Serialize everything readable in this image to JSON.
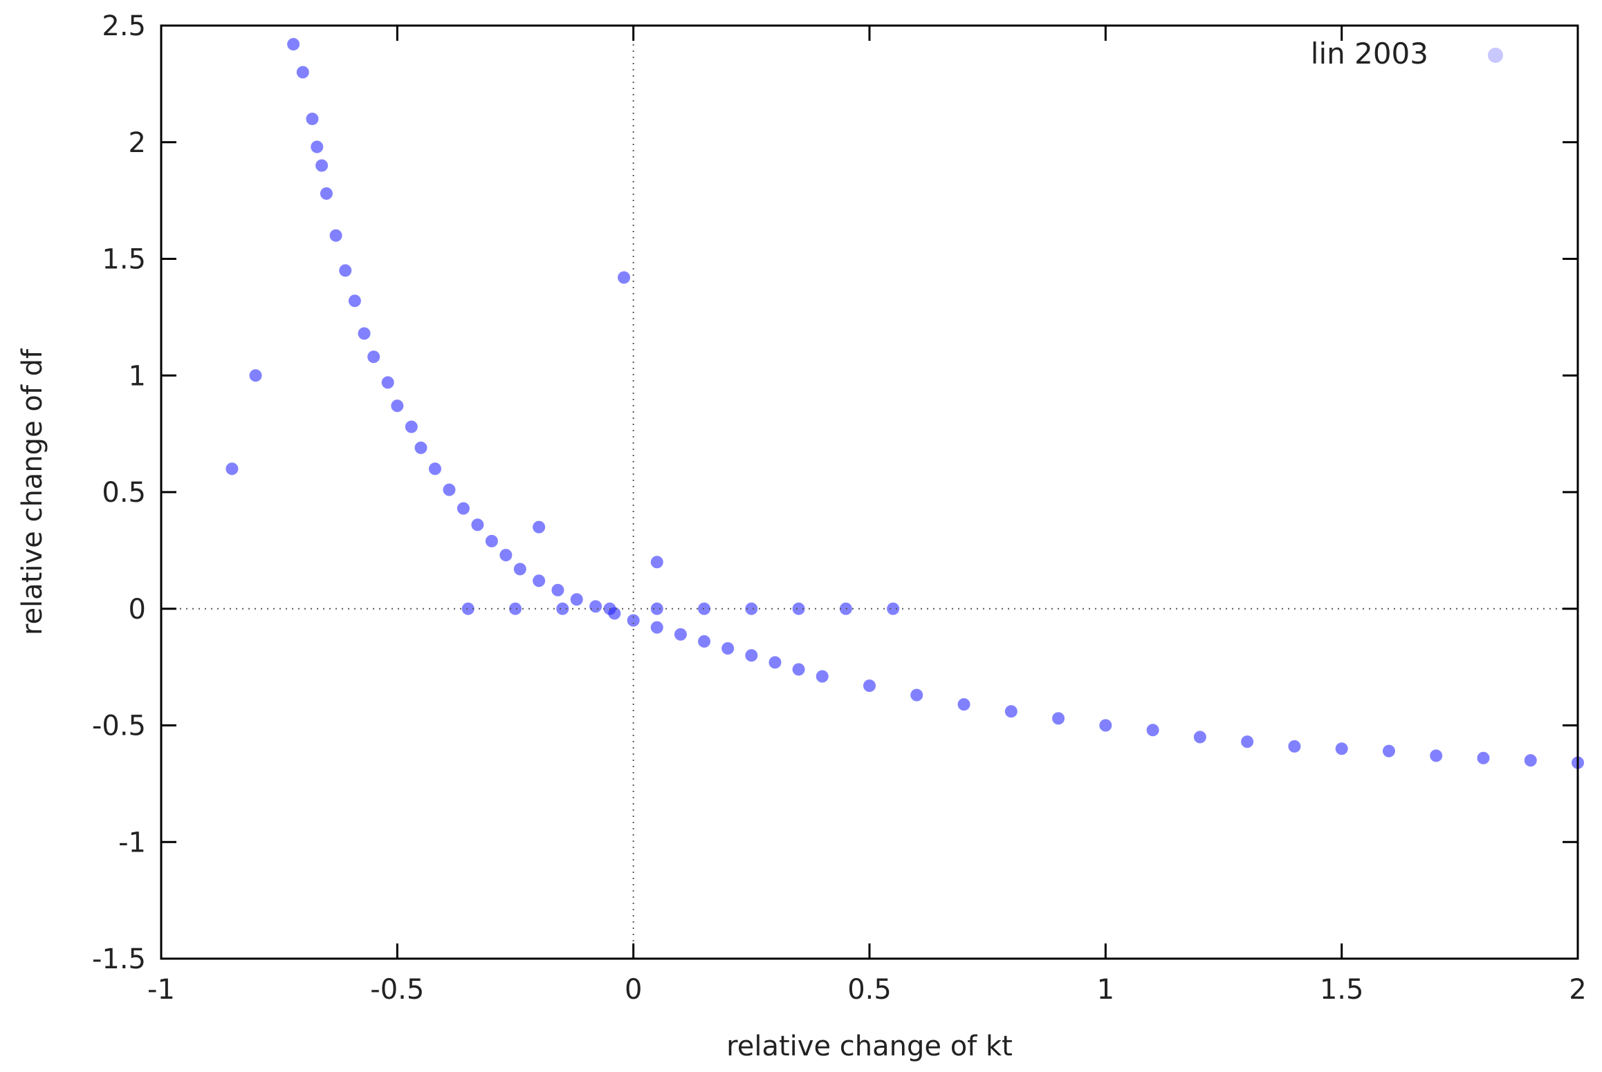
{
  "chart_data": {
    "type": "scatter",
    "title": "",
    "xlabel": "relative change of kt",
    "ylabel": "relative change of df",
    "xlim": [
      -1,
      2
    ],
    "ylim": [
      -1.5,
      2.5
    ],
    "xticks": [
      "-1",
      "-0.5",
      "0",
      "0.5",
      "1",
      "1.5",
      "2"
    ],
    "yticks": [
      "-1.5",
      "-1",
      "-0.5",
      "0",
      "0.5",
      "1",
      "1.5",
      "2",
      "2.5"
    ],
    "grid": false,
    "zero_lines": true,
    "legend": {
      "position": "top-right"
    },
    "series": [
      {
        "name": "lin 2003",
        "color": "#1a1aff",
        "legend_color": "#c8c8ff",
        "points": [
          [
            -0.72,
            2.42
          ],
          [
            -0.7,
            2.3
          ],
          [
            -0.68,
            2.1
          ],
          [
            -0.67,
            1.98
          ],
          [
            -0.66,
            1.9
          ],
          [
            -0.65,
            1.78
          ],
          [
            -0.63,
            1.6
          ],
          [
            -0.61,
            1.45
          ],
          [
            -0.59,
            1.32
          ],
          [
            -0.57,
            1.18
          ],
          [
            -0.55,
            1.08
          ],
          [
            -0.52,
            0.97
          ],
          [
            -0.5,
            0.87
          ],
          [
            -0.47,
            0.78
          ],
          [
            -0.45,
            0.69
          ],
          [
            -0.42,
            0.6
          ],
          [
            -0.39,
            0.51
          ],
          [
            -0.36,
            0.43
          ],
          [
            -0.33,
            0.36
          ],
          [
            -0.3,
            0.29
          ],
          [
            -0.27,
            0.23
          ],
          [
            -0.24,
            0.17
          ],
          [
            -0.2,
            0.12
          ],
          [
            -0.16,
            0.08
          ],
          [
            -0.12,
            0.04
          ],
          [
            -0.08,
            0.01
          ],
          [
            -0.04,
            -0.02
          ],
          [
            0.0,
            -0.05
          ],
          [
            0.05,
            -0.08
          ],
          [
            0.1,
            -0.11
          ],
          [
            0.15,
            -0.14
          ],
          [
            0.2,
            -0.17
          ],
          [
            0.25,
            -0.2
          ],
          [
            0.3,
            -0.23
          ],
          [
            0.35,
            -0.26
          ],
          [
            0.4,
            -0.29
          ],
          [
            0.5,
            -0.33
          ],
          [
            0.6,
            -0.37
          ],
          [
            0.7,
            -0.41
          ],
          [
            0.8,
            -0.44
          ],
          [
            0.9,
            -0.47
          ],
          [
            1.0,
            -0.5
          ],
          [
            1.1,
            -0.52
          ],
          [
            1.2,
            -0.55
          ],
          [
            1.3,
            -0.57
          ],
          [
            1.4,
            -0.59
          ],
          [
            1.5,
            -0.6
          ],
          [
            1.6,
            -0.61
          ],
          [
            1.7,
            -0.63
          ],
          [
            1.8,
            -0.64
          ],
          [
            1.9,
            -0.65
          ],
          [
            2.0,
            -0.66
          ],
          [
            -0.35,
            0.0
          ],
          [
            -0.25,
            0.0
          ],
          [
            -0.15,
            0.0
          ],
          [
            -0.05,
            0.0
          ],
          [
            0.05,
            0.0
          ],
          [
            0.15,
            0.0
          ],
          [
            0.25,
            0.0
          ],
          [
            0.35,
            0.0
          ],
          [
            0.45,
            0.0
          ],
          [
            0.55,
            0.0
          ],
          [
            -0.8,
            1.0
          ],
          [
            -0.85,
            0.6
          ],
          [
            -0.02,
            1.42
          ],
          [
            0.05,
            0.2
          ],
          [
            -0.2,
            0.35
          ]
        ]
      }
    ]
  }
}
